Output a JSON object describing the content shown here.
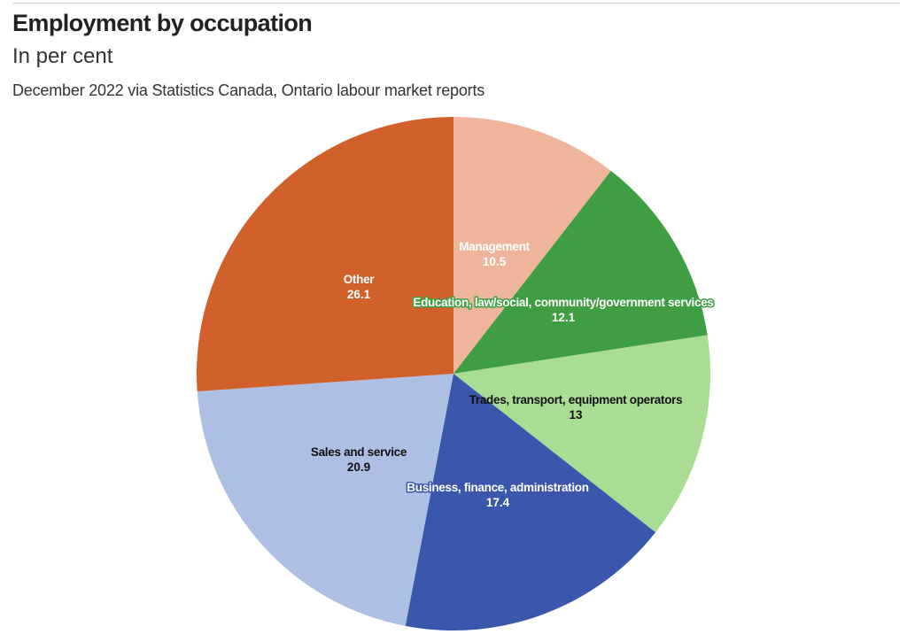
{
  "header": {
    "title": "Employment by occupation",
    "subtitle": "In per cent",
    "source": "December 2022 via Statistics Canada, Ontario labour market reports"
  },
  "chart_data": {
    "type": "pie",
    "title": "Employment by occupation",
    "subtitle": "In per cent",
    "slices": [
      {
        "label": "Management",
        "value": 10.5,
        "color": "#efb59c",
        "label_color": "#ffffff",
        "halo": ""
      },
      {
        "label": "Education, law/social, community/government services",
        "value": 12.1,
        "color": "#3f9e43",
        "label_color": "#ffffff",
        "halo": "#3f9e43"
      },
      {
        "label": "Trades, transport, equipment operators",
        "value": 13,
        "color": "#a8dd93",
        "label_color": "#111111",
        "halo": ""
      },
      {
        "label": "Business, finance, administration",
        "value": 17.4,
        "color": "#3b57ac",
        "label_color": "#ffffff",
        "halo": "#3b57ac"
      },
      {
        "label": "Sales and service",
        "value": 20.9,
        "color": "#adc0e3",
        "label_color": "#111111",
        "halo": ""
      },
      {
        "label": "Other",
        "value": 26.1,
        "color": "#d2602b",
        "label_color": "#ffffff",
        "halo": ""
      }
    ],
    "start_angle": "12 o'clock",
    "direction": "clockwise",
    "legend": "none",
    "data_labels": "label and value inside slices"
  }
}
